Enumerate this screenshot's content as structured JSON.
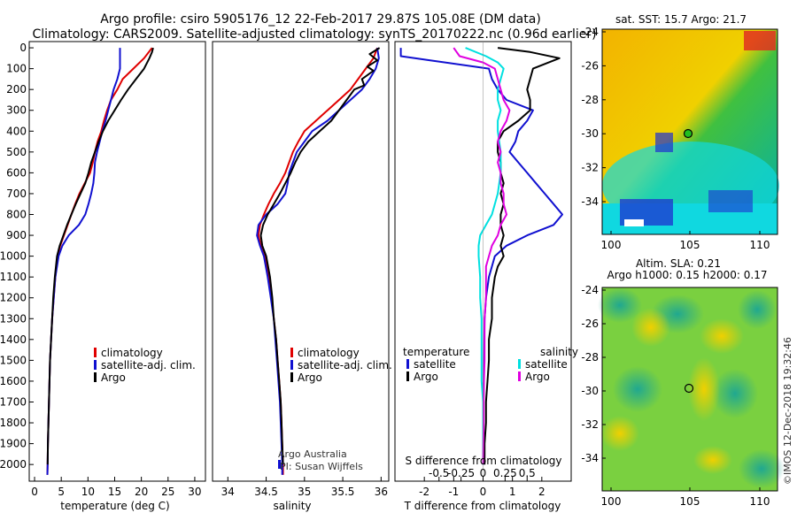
{
  "header": {
    "title_line1": "Argo profile: csiro 5905176_12 22-Feb-2017 29.87S 105.08E (DM data)",
    "title_line2": "Climatology: CARS2009. Satellite-adjusted climatology: synTS_20170222.nc (0.96d earlier)"
  },
  "colors": {
    "climatology": "#e00000",
    "satellite": "#1010d0",
    "argo": "#000000",
    "argo_sal_diff": "#e000e0",
    "sat_sal_diff": "#00e0e0"
  },
  "depth_axis": {
    "ticks": [
      0,
      100,
      200,
      300,
      400,
      500,
      600,
      700,
      800,
      900,
      1000,
      1100,
      1200,
      1300,
      1400,
      1500,
      1600,
      1700,
      1800,
      1900,
      2000
    ]
  },
  "chart_data": [
    {
      "id": "temperature",
      "type": "line",
      "xlabel": "temperature (deg C)",
      "ylabel": "depth",
      "xlim": [
        -1,
        32
      ],
      "ylim": [
        2080,
        -30
      ],
      "xticks": [
        0,
        5,
        10,
        15,
        20,
        25,
        30
      ],
      "legend": [
        "climatology",
        "satellite-adj. clim.",
        "Argo"
      ],
      "series": [
        {
          "name": "climatology",
          "color": "climatology",
          "depth": [
            0,
            50,
            100,
            150,
            200,
            250,
            300,
            350,
            400,
            450,
            500,
            550,
            600,
            650,
            700,
            750,
            800,
            850,
            900,
            950,
            1000,
            1100,
            1200,
            1300,
            1400,
            1500,
            1600,
            1700,
            1800,
            1900,
            2000,
            2050
          ],
          "values": [
            22,
            20.5,
            18.5,
            16.5,
            15.5,
            14.3,
            13.6,
            13,
            12.5,
            11.8,
            11.3,
            10.9,
            10.4,
            9.4,
            8.4,
            7.6,
            6.9,
            6.2,
            5.5,
            4.8,
            4.3,
            3.9,
            3.6,
            3.3,
            3.1,
            2.9,
            2.8,
            2.7,
            2.6,
            2.5,
            2.45,
            2.4
          ]
        },
        {
          "name": "satellite-adj. clim.",
          "color": "satellite",
          "depth": [
            0,
            100,
            150,
            200,
            250,
            300,
            350,
            400,
            450,
            500,
            550,
            600,
            650,
            700,
            750,
            800,
            850,
            900,
            950,
            1000,
            1100,
            1200,
            1300,
            1400,
            1500,
            1600,
            1700,
            1800,
            1900,
            2000,
            2050
          ],
          "values": [
            16,
            16,
            15.5,
            14.8,
            14.3,
            13.8,
            13.3,
            12.7,
            12.2,
            11.7,
            11.3,
            11.2,
            11,
            10.6,
            10.1,
            9.5,
            8.3,
            6.4,
            5.2,
            4.5,
            3.9,
            3.6,
            3.3,
            3.1,
            2.9,
            2.8,
            2.7,
            2.6,
            2.5,
            2.45,
            2.4
          ]
        },
        {
          "name": "Argo",
          "color": "argo",
          "depth": [
            0,
            20,
            50,
            100,
            150,
            200,
            250,
            300,
            350,
            400,
            450,
            500,
            550,
            600,
            650,
            700,
            750,
            800,
            850,
            900,
            950,
            1000,
            1100,
            1200,
            1300,
            1400,
            1500,
            1600,
            1700,
            1800,
            1900,
            2000
          ],
          "values": [
            22.2,
            22,
            21.5,
            20.5,
            19,
            17.5,
            16.2,
            15,
            13.8,
            12.8,
            12,
            11.3,
            10.6,
            10.1,
            9.5,
            8.6,
            7.7,
            6.9,
            6.1,
            5.4,
            4.7,
            4.2,
            3.8,
            3.5,
            3.3,
            3.1,
            2.9,
            2.8,
            2.7,
            2.6,
            2.5,
            2.45
          ]
        }
      ]
    },
    {
      "id": "salinity",
      "type": "line",
      "xlabel": "salinity",
      "ylabel": "depth",
      "xlim": [
        33.8,
        36.1
      ],
      "ylim": [
        2080,
        -30
      ],
      "xticks": [
        34,
        34.5,
        35,
        35.5,
        36
      ],
      "xticklabels": [
        "34",
        "34.5",
        "35",
        "35.5",
        "36"
      ],
      "legend": [
        "climatology",
        "satellite-adj. clim.",
        "Argo"
      ],
      "credit_line1": "Argo Australia",
      "credit_line2": "PI: Susan Wijffels",
      "series": [
        {
          "name": "climatology",
          "color": "climatology",
          "depth": [
            0,
            50,
            100,
            150,
            200,
            250,
            300,
            350,
            400,
            450,
            500,
            550,
            600,
            650,
            700,
            750,
            800,
            850,
            900,
            950,
            1000,
            1100,
            1200,
            1300,
            1400,
            1500,
            1600,
            1700,
            1800,
            1900,
            2000,
            2050
          ],
          "values": [
            35.95,
            35.9,
            35.8,
            35.7,
            35.6,
            35.45,
            35.3,
            35.15,
            35.0,
            34.92,
            34.85,
            34.8,
            34.75,
            34.68,
            34.6,
            34.53,
            34.47,
            34.42,
            34.4,
            34.43,
            34.48,
            34.53,
            34.57,
            34.6,
            34.63,
            34.65,
            34.67,
            34.69,
            34.7,
            34.71,
            34.72,
            34.72
          ]
        },
        {
          "name": "satellite-adj. clim.",
          "color": "satellite",
          "depth": [
            0,
            50,
            100,
            150,
            200,
            250,
            300,
            350,
            400,
            450,
            500,
            550,
            600,
            650,
            700,
            750,
            800,
            850,
            900,
            950,
            1000,
            1100,
            1200,
            1300,
            1400,
            1500,
            1600,
            1700,
            1800,
            1900,
            2000,
            2050
          ],
          "values": [
            35.95,
            35.97,
            35.93,
            35.85,
            35.75,
            35.6,
            35.45,
            35.3,
            35.1,
            35.0,
            34.9,
            34.85,
            34.8,
            34.78,
            34.75,
            34.65,
            34.5,
            34.4,
            34.38,
            34.42,
            34.47,
            34.52,
            34.56,
            34.6,
            34.62,
            34.64,
            34.66,
            34.68,
            34.69,
            34.7,
            34.71,
            34.71
          ]
        },
        {
          "name": "Argo",
          "color": "argo",
          "depth": [
            0,
            30,
            60,
            90,
            110,
            150,
            180,
            200,
            250,
            300,
            350,
            400,
            450,
            500,
            550,
            600,
            650,
            700,
            750,
            800,
            850,
            900,
            950,
            1000,
            1100,
            1200,
            1300,
            1400,
            1500,
            1600,
            1700,
            1800,
            1900,
            2000
          ],
          "values": [
            35.98,
            35.85,
            35.95,
            35.82,
            35.9,
            35.75,
            35.78,
            35.65,
            35.55,
            35.45,
            35.35,
            35.2,
            35.05,
            34.95,
            34.88,
            34.82,
            34.75,
            34.68,
            34.6,
            34.52,
            34.46,
            34.43,
            34.45,
            34.5,
            34.55,
            34.58,
            34.6,
            34.63,
            34.65,
            34.67,
            34.69,
            34.7,
            34.71,
            34.72
          ]
        }
      ]
    },
    {
      "id": "difference",
      "type": "line",
      "xlabel": "T difference from climatology",
      "xlabel_top": "S difference from climatology",
      "ylabel": "depth",
      "xlim": [
        -3,
        3
      ],
      "ylim": [
        2080,
        -30
      ],
      "xticks": [
        -2,
        -1,
        0,
        1,
        2
      ],
      "s_tick_positions": [
        -1.5,
        -0.75,
        0,
        0.75,
        1.5
      ],
      "s_tick_labels": [
        "-0.5",
        "-0.25",
        "0",
        "0.25",
        "0.5"
      ],
      "legend_temperature": {
        "title": "temperature",
        "items": [
          "satellite",
          "Argo"
        ]
      },
      "legend_salinity": {
        "title": "salinity",
        "items": [
          "satellite",
          "Argo"
        ]
      },
      "series": [
        {
          "name": "T satellite",
          "color": "satellite",
          "depth": [
            0,
            40,
            60,
            100,
            150,
            200,
            250,
            300,
            350,
            400,
            450,
            500,
            550,
            600,
            650,
            700,
            750,
            800,
            850,
            900,
            950,
            1000,
            1100,
            1200,
            1300,
            1400,
            1500,
            1600,
            1700,
            1800,
            1900,
            2000
          ],
          "values": [
            -2.8,
            -2.8,
            -1.8,
            0.2,
            0.3,
            0.5,
            0.8,
            1.7,
            1.5,
            1.2,
            1.1,
            0.9,
            1.2,
            1.5,
            1.8,
            2.1,
            2.4,
            2.7,
            2.4,
            1.5,
            0.8,
            0.4,
            0.2,
            0.1,
            0.05,
            0.04,
            0.03,
            0.02,
            0.01,
            0.01,
            0.0,
            0.0
          ]
        },
        {
          "name": "T Argo",
          "color": "argo",
          "depth": [
            0,
            20,
            50,
            100,
            150,
            200,
            250,
            300,
            350,
            400,
            450,
            500,
            550,
            600,
            650,
            700,
            750,
            800,
            850,
            900,
            950,
            1000,
            1050,
            1100,
            1200,
            1300,
            1400,
            1500,
            1600,
            1700,
            1800,
            1900,
            2000
          ],
          "values": [
            0.5,
            1.6,
            2.6,
            1.7,
            1.6,
            1.5,
            1.6,
            1.6,
            1.2,
            0.7,
            0.5,
            0.5,
            0.6,
            0.6,
            0.7,
            0.6,
            0.7,
            0.6,
            0.6,
            0.7,
            0.6,
            0.7,
            0.5,
            0.4,
            0.3,
            0.3,
            0.2,
            0.2,
            0.15,
            0.1,
            0.1,
            0.05,
            0.05
          ]
        },
        {
          "name": "S satellite",
          "color": "sat_sal_diff",
          "depth": [
            0,
            40,
            70,
            100,
            150,
            200,
            250,
            300,
            350,
            400,
            500,
            600,
            700,
            800,
            850,
            900,
            950,
            1000,
            1100,
            1200,
            1300,
            1400,
            1500,
            1600,
            1700,
            1800,
            1900,
            2000
          ],
          "values": [
            -0.6,
            0.1,
            0.5,
            0.7,
            0.6,
            0.5,
            0.5,
            0.6,
            0.5,
            0.5,
            0.6,
            0.6,
            0.5,
            0.3,
            0.1,
            -0.1,
            -0.15,
            -0.15,
            -0.1,
            -0.1,
            -0.05,
            -0.05,
            -0.05,
            -0.05,
            0.0,
            0.0,
            0.0,
            0.0
          ]
        },
        {
          "name": "S Argo",
          "color": "argo_sal_diff",
          "depth": [
            0,
            40,
            70,
            100,
            150,
            200,
            250,
            300,
            350,
            400,
            450,
            500,
            550,
            600,
            650,
            700,
            750,
            800,
            850,
            900,
            950,
            1000,
            1050,
            1100,
            1200,
            1300,
            1400,
            1500,
            1600,
            1700,
            1800,
            1900,
            2000
          ],
          "values": [
            -1.0,
            -0.8,
            0.0,
            0.4,
            0.5,
            0.6,
            0.7,
            0.9,
            0.8,
            0.6,
            0.5,
            0.6,
            0.5,
            0.6,
            0.6,
            0.7,
            0.7,
            0.8,
            0.6,
            0.5,
            0.3,
            0.2,
            0.1,
            0.1,
            0.1,
            0.05,
            0.05,
            0.05,
            0.03,
            0.02,
            0.02,
            0.01,
            0.0
          ]
        }
      ]
    }
  ],
  "maps": {
    "sst": {
      "title": "sat. SST: 15.7 Argo: 21.7",
      "xticks": [
        "100",
        "105",
        "110"
      ],
      "yticks": [
        "-24",
        "-26",
        "-28",
        "-30",
        "-32",
        "-34"
      ]
    },
    "sla": {
      "title_line1": "Altim. SLA: 0.21",
      "title_line2": "Argo h1000: 0.15 h2000: 0.17",
      "xticks": [
        "100",
        "105",
        "110"
      ],
      "yticks": [
        "-24",
        "-26",
        "-28",
        "-30",
        "-32",
        "-34"
      ]
    },
    "footer": "©IMOS 12-Dec-2018 19:32:46"
  }
}
